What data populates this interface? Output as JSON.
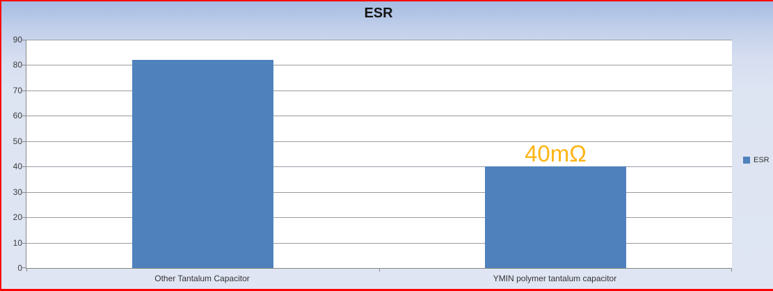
{
  "chart_data": {
    "type": "bar",
    "title": "ESR",
    "categories": [
      "Other Tantalum Capacitor",
      "YMIN polymer tantalum capacitor"
    ],
    "series": [
      {
        "name": "ESR",
        "values": [
          82,
          40
        ]
      }
    ],
    "xlabel": "",
    "ylabel": "",
    "ylim": [
      0,
      90
    ],
    "yticks": [
      0,
      10,
      20,
      30,
      40,
      50,
      60,
      70,
      80,
      90
    ],
    "grid": true,
    "legend_position": "right",
    "annotations": [
      {
        "category_index": 1,
        "text": "40mΩ"
      }
    ]
  },
  "colors": {
    "bar": "#4F81BD",
    "annotation": "#FDB515",
    "border": "#FF0000",
    "gridline": "#999AA2",
    "axis": "#868686",
    "plot_background": "#FFFFFF"
  }
}
